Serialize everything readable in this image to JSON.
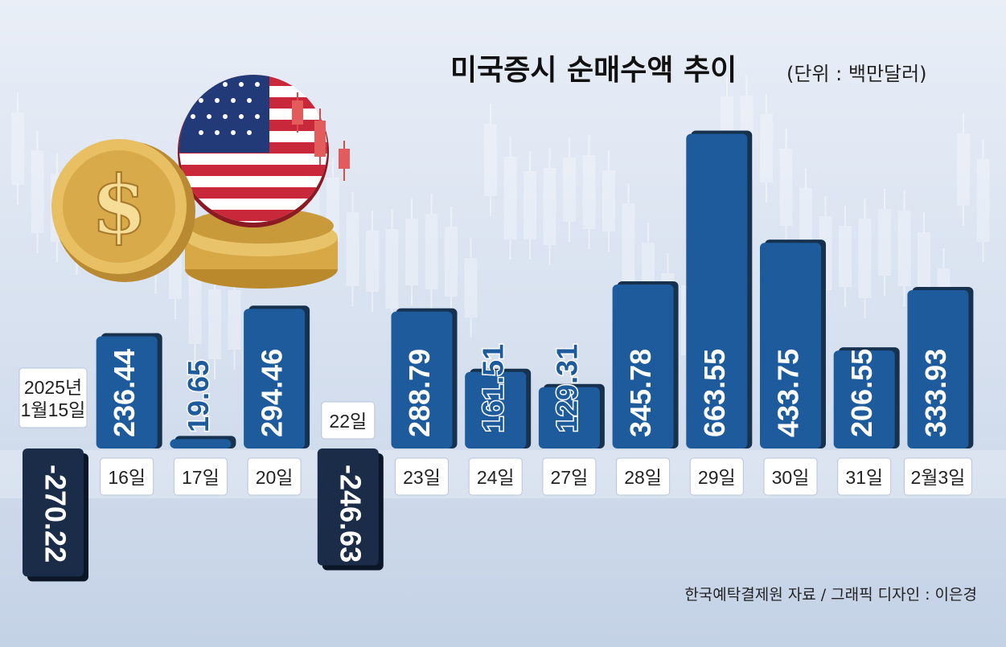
{
  "header": {
    "title": "미국증시 순매수액 추이",
    "unit": "(단위 : 백만달러)"
  },
  "footer": {
    "source": "한국예탁결제원 자료 / 그래픽 디자인 : 이은경"
  },
  "illustration": {
    "icon": "dollar-coins-and-us-flag-with-candlesticks"
  },
  "colors": {
    "bar": "#1d5b9c",
    "bar_dark": "#17324f",
    "negative_bar": "#1a2c47",
    "background": "#dbe4f1"
  },
  "chart_data": {
    "type": "bar",
    "title": "미국증시 순매수액 추이",
    "unit": "(단위 : 백만달러)",
    "categories": [
      "2025년 1월15일",
      "16일",
      "17일",
      "20일",
      "22일",
      "23일",
      "24일",
      "27일",
      "28일",
      "29일",
      "30일",
      "31일",
      "2월3일"
    ],
    "category_lines": [
      [
        "2025년",
        "1월15일"
      ],
      [
        "16일"
      ],
      [
        "17일"
      ],
      [
        "20일"
      ],
      [
        "22일"
      ],
      [
        "23일"
      ],
      [
        "24일"
      ],
      [
        "27일"
      ],
      [
        "28일"
      ],
      [
        "29일"
      ],
      [
        "30일"
      ],
      [
        "31일"
      ],
      [
        "2월3일"
      ]
    ],
    "values": [
      -270.22,
      236.44,
      19.65,
      294.46,
      -246.63,
      288.79,
      161.51,
      129.31,
      345.78,
      663.55,
      433.75,
      206.55,
      333.93
    ],
    "value_labels": [
      "-270.22",
      "236.44",
      "19.65",
      "294.46",
      "-246.63",
      "288.79",
      "161.51",
      "129.31",
      "345.78",
      "663.55",
      "433.75",
      "206.55",
      "333.93"
    ],
    "ylim": [
      -300,
      700
    ],
    "grid": false,
    "legend": "none"
  }
}
